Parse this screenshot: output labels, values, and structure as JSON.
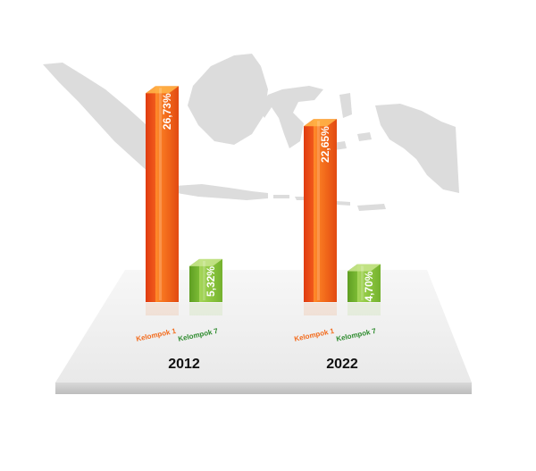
{
  "chart_data": {
    "type": "bar",
    "categories": [
      "2012",
      "2022"
    ],
    "series": [
      {
        "name": "Kelompok 1",
        "values": [
          26.73,
          22.65
        ],
        "labels": [
          "26,73%",
          "22,65%"
        ],
        "color": "#f26a1b"
      },
      {
        "name": "Kelompok 7",
        "values": [
          5.32,
          4.7
        ],
        "labels": [
          "5,32%",
          "4,70%"
        ],
        "color": "#8cc63f"
      }
    ],
    "value_labels_rotated": true,
    "legend": "none",
    "grid": false,
    "background": "map of Indonesia (grey silhouette)",
    "colors": {
      "kelompok1_front": "#f26a1b",
      "kelompok1_side": "#d9340f",
      "kelompok1_top": "#ffb347",
      "kelompok7_front": "#8cc63f",
      "kelompok7_side": "#5e9e22",
      "kelompok7_top": "#c6e48b",
      "kelompok1_text": "#f26a1b",
      "kelompok7_text": "#2e8b2e",
      "map": "#dcdcdc",
      "platform_top": "#f2f2f2",
      "platform_front": "#cfcfcf"
    }
  }
}
